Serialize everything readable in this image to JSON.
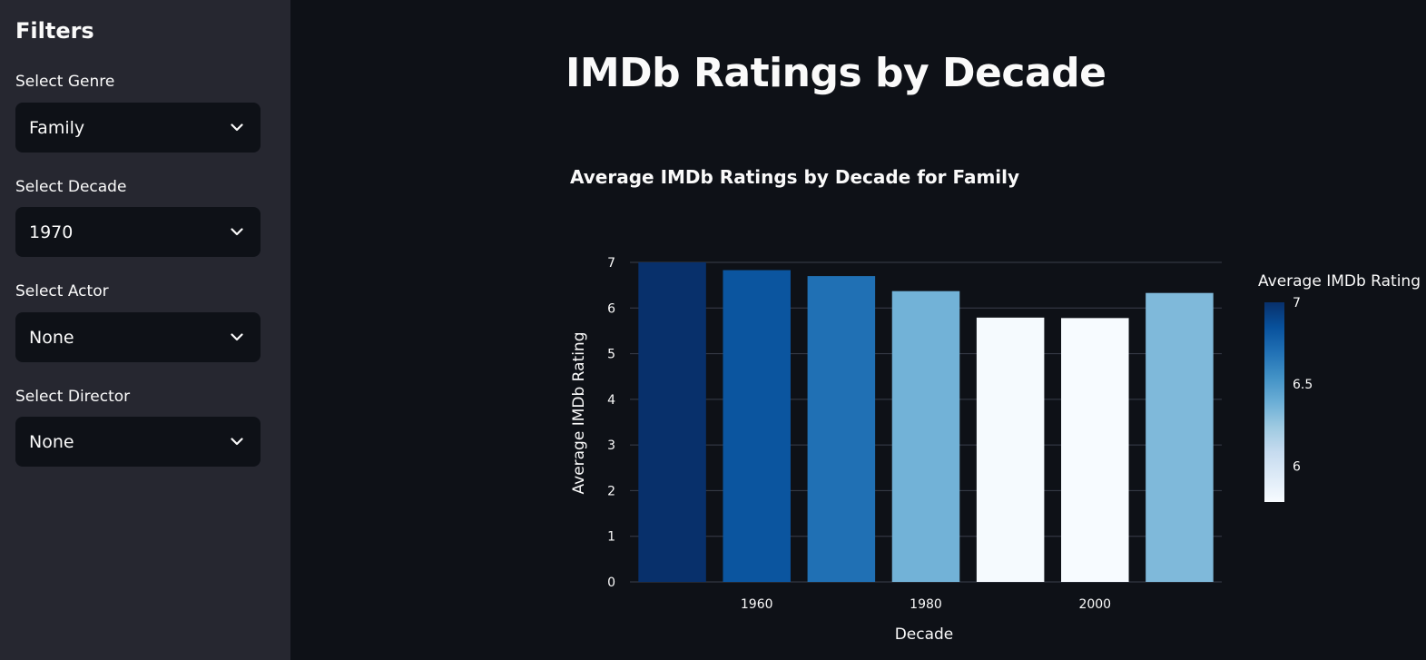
{
  "sidebar": {
    "title": "Filters",
    "filters": [
      {
        "label": "Select Genre",
        "value": "Family"
      },
      {
        "label": "Select Decade",
        "value": "1970"
      },
      {
        "label": "Select Actor",
        "value": "None"
      },
      {
        "label": "Select Director",
        "value": "None"
      }
    ]
  },
  "main": {
    "title": "IMDb Ratings by Decade"
  },
  "colors": {
    "page_bg": "#0e1117",
    "sidebar_bg": "#262730",
    "grid": "#3a3f4b",
    "colorscale": [
      "#f7fbff",
      "#deebf7",
      "#c6dbef",
      "#9ecae1",
      "#6baed6",
      "#4292c6",
      "#2171b5",
      "#08519c",
      "#08306b"
    ]
  },
  "chart_data": {
    "type": "bar",
    "title": "Average IMDb Ratings by Decade for Family",
    "xlabel": "Decade",
    "ylabel": "Average IMDb Rating",
    "x": [
      1950,
      1960,
      1970,
      1980,
      1990,
      2000,
      2010
    ],
    "values": [
      7.0,
      6.83,
      6.7,
      6.37,
      5.79,
      5.78,
      6.33
    ],
    "x_ticks": [
      "1960",
      "1980",
      "2000"
    ],
    "y_ticks": [
      "0",
      "1",
      "2",
      "3",
      "4",
      "5",
      "6",
      "7"
    ],
    "ylim": [
      0,
      7
    ],
    "grid": true,
    "colorbar": {
      "title": "Average IMDb Rating",
      "range": [
        5.78,
        7.0
      ],
      "ticks": [
        "7",
        "6.5",
        "6"
      ]
    }
  }
}
